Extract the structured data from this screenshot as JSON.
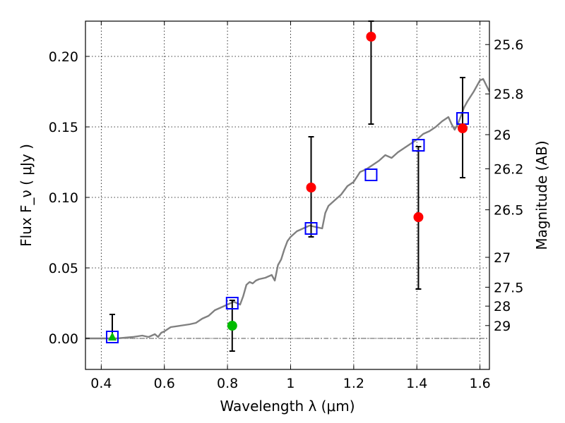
{
  "chart_data": {
    "type": "scatter",
    "xlabel": "Wavelength  λ (μm)",
    "ylabel_left": "Flux  F_ν  ( μJy )",
    "ylabel_right": "Magnitude (AB)",
    "xlim": [
      0.35,
      1.63
    ],
    "ylim": [
      -0.022,
      0.225
    ],
    "grid": true,
    "x_ticks": [
      {
        "value": 0.4,
        "label": "0.4"
      },
      {
        "value": 0.6,
        "label": "0.6"
      },
      {
        "value": 0.8,
        "label": "0.8"
      },
      {
        "value": 1.0,
        "label": "1"
      },
      {
        "value": 1.2,
        "label": "1.2"
      },
      {
        "value": 1.4,
        "label": "1.4"
      },
      {
        "value": 1.6,
        "label": "1.6"
      }
    ],
    "y_ticks": [
      {
        "value": 0.0,
        "label": "0.00"
      },
      {
        "value": 0.05,
        "label": "0.05"
      },
      {
        "value": 0.1,
        "label": "0.10"
      },
      {
        "value": 0.15,
        "label": "0.15"
      },
      {
        "value": 0.2,
        "label": "0.20"
      }
    ],
    "mag_ticks": [
      {
        "flux": 0.2084,
        "label": "25.6"
      },
      {
        "flux": 0.1734,
        "label": "25.8"
      },
      {
        "flux": 0.1445,
        "label": "26"
      },
      {
        "flux": 0.1203,
        "label": "26.2"
      },
      {
        "flux": 0.0912,
        "label": "26.5"
      },
      {
        "flux": 0.0575,
        "label": "27"
      },
      {
        "flux": 0.0363,
        "label": "27.5"
      },
      {
        "flux": 0.0229,
        "label": "28"
      },
      {
        "flux": 0.0091,
        "label": "29"
      }
    ],
    "series": [
      {
        "kind": "line",
        "color": "#808080",
        "x": [
          0.35,
          0.45,
          0.5,
          0.53,
          0.55,
          0.57,
          0.58,
          0.59,
          0.6,
          0.62,
          0.65,
          0.68,
          0.7,
          0.72,
          0.74,
          0.76,
          0.78,
          0.8,
          0.82,
          0.84,
          0.85,
          0.86,
          0.87,
          0.88,
          0.89,
          0.9,
          0.92,
          0.94,
          0.95,
          0.96,
          0.97,
          0.98,
          0.99,
          1.0,
          1.02,
          1.04,
          1.06,
          1.08,
          1.1,
          1.11,
          1.12,
          1.14,
          1.16,
          1.18,
          1.2,
          1.22,
          1.24,
          1.26,
          1.28,
          1.3,
          1.32,
          1.34,
          1.36,
          1.38,
          1.4,
          1.42,
          1.44,
          1.46,
          1.48,
          1.5,
          1.51,
          1.52,
          1.53,
          1.54,
          1.55,
          1.56,
          1.58,
          1.6,
          1.61,
          1.63
        ],
        "y": [
          0.0,
          0.0,
          0.001,
          0.002,
          0.001,
          0.003,
          0.001,
          0.004,
          0.005,
          0.008,
          0.009,
          0.01,
          0.011,
          0.014,
          0.016,
          0.02,
          0.022,
          0.024,
          0.026,
          0.024,
          0.03,
          0.038,
          0.04,
          0.039,
          0.041,
          0.042,
          0.043,
          0.045,
          0.041,
          0.052,
          0.056,
          0.063,
          0.069,
          0.072,
          0.076,
          0.078,
          0.08,
          0.079,
          0.078,
          0.089,
          0.094,
          0.098,
          0.102,
          0.108,
          0.111,
          0.118,
          0.12,
          0.123,
          0.126,
          0.13,
          0.128,
          0.132,
          0.135,
          0.138,
          0.141,
          0.145,
          0.147,
          0.15,
          0.154,
          0.157,
          0.152,
          0.148,
          0.152,
          0.158,
          0.164,
          0.168,
          0.175,
          0.183,
          0.184,
          0.175
        ]
      },
      {
        "kind": "squares",
        "color": "#0000ff",
        "x": [
          0.435,
          0.815,
          1.065,
          1.255,
          1.405,
          1.545
        ],
        "y": [
          0.001,
          0.025,
          0.078,
          0.116,
          0.137,
          0.156
        ]
      },
      {
        "kind": "circles",
        "color": "#ff0000",
        "x": [
          1.065,
          1.255,
          1.405,
          1.545
        ],
        "y": [
          0.107,
          0.214,
          0.086,
          0.149
        ],
        "err_low": [
          0.072,
          0.152,
          0.035,
          0.114
        ],
        "err_high": [
          0.143,
          0.225,
          0.136,
          0.185
        ]
      },
      {
        "kind": "circles",
        "color": "#00bb00",
        "x": [
          0.815
        ],
        "y": [
          0.009
        ],
        "err_low": [
          -0.009
        ],
        "err_high": [
          0.027
        ]
      },
      {
        "kind": "triangle",
        "color": "#00bb00",
        "x": [
          0.435
        ],
        "y": [
          0.001
        ],
        "err_low": [
          0.0
        ],
        "err_high": [
          0.017
        ]
      }
    ]
  }
}
